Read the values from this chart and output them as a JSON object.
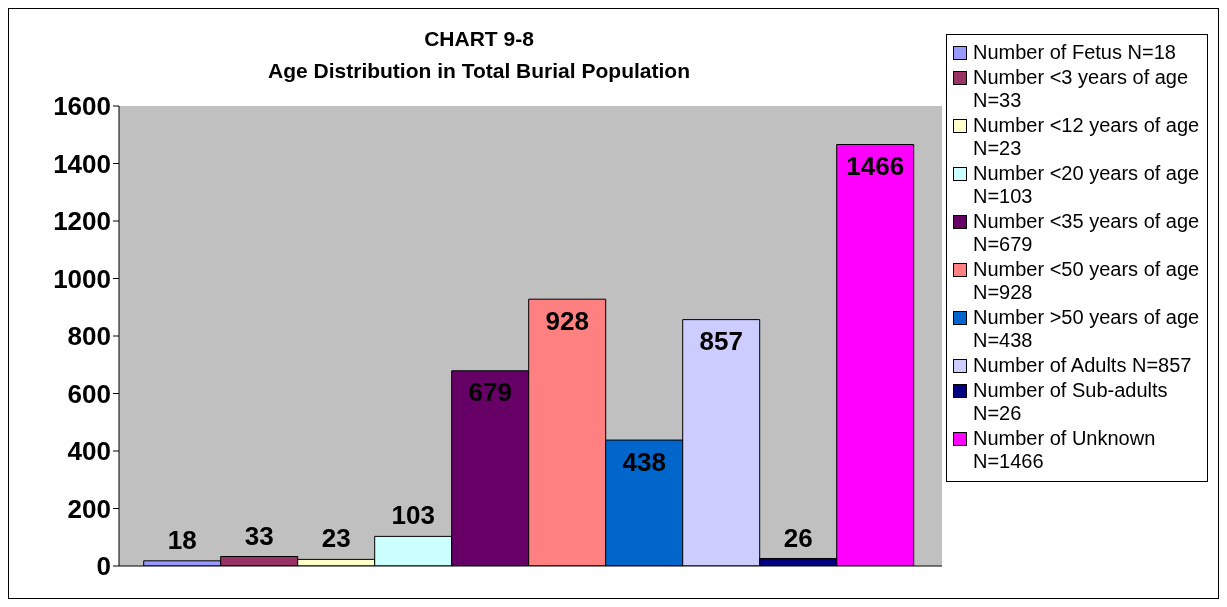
{
  "chart_data": {
    "type": "bar",
    "title": "CHART 9-8",
    "subtitle": "Age Distribution in Total Burial Population",
    "categories": [
      null
    ],
    "series": [
      {
        "name": "Number of Fetus N=18",
        "color": "#9999ff",
        "values": [
          18
        ]
      },
      {
        "name": "Number <3 years of age N=33",
        "color": "#993366",
        "values": [
          33
        ]
      },
      {
        "name": "Number <12 years of age N=23",
        "color": "#ffffcc",
        "values": [
          23
        ]
      },
      {
        "name": "Number <20 years of age N=103",
        "color": "#ccffff",
        "values": [
          103
        ]
      },
      {
        "name": "Number <35 years of age N=679",
        "color": "#660066",
        "values": [
          679
        ]
      },
      {
        "name": "Number <50 years of age N=928",
        "color": "#ff8080",
        "values": [
          928
        ]
      },
      {
        "name": "Number >50 years of age N=438",
        "color": "#0066cc",
        "values": [
          438
        ]
      },
      {
        "name": "Number of Adults N=857",
        "color": "#ccccff",
        "values": [
          857
        ]
      },
      {
        "name": "Number of Sub-adults N=26",
        "color": "#000080",
        "values": [
          26
        ]
      },
      {
        "name": "Number of Unknown N=1466",
        "color": "#ff00ff",
        "values": [
          1466
        ]
      }
    ],
    "ylim": [
      0,
      1600
    ],
    "yticks": [
      0,
      200,
      400,
      600,
      800,
      1000,
      1200,
      1400,
      1600
    ],
    "grid": false,
    "legend": "right",
    "data_labels": true
  }
}
